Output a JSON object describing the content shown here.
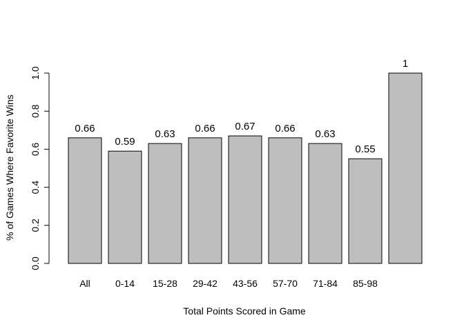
{
  "chart_data": {
    "type": "bar",
    "categories": [
      "All",
      "0-14",
      "15-28",
      "29-42",
      "43-56",
      "57-70",
      "71-84",
      "85-98",
      ""
    ],
    "values": [
      0.66,
      0.59,
      0.63,
      0.66,
      0.67,
      0.66,
      0.63,
      0.55,
      1
    ],
    "value_labels": [
      "0.66",
      "0.59",
      "0.63",
      "0.66",
      "0.67",
      "0.66",
      "0.63",
      "0.55",
      "1"
    ],
    "xlabel": "Total Points Scored in Game",
    "ylabel": "% of Games Where Favorite Wins",
    "ylim": [
      0,
      1
    ],
    "yticks": [
      0.0,
      0.2,
      0.4,
      0.6,
      0.8,
      1.0
    ],
    "ytick_labels": [
      "0.0",
      "0.2",
      "0.4",
      "0.6",
      "0.8",
      "1.0"
    ],
    "bar_color": "#bebebe",
    "grid": false,
    "legend": "none"
  }
}
